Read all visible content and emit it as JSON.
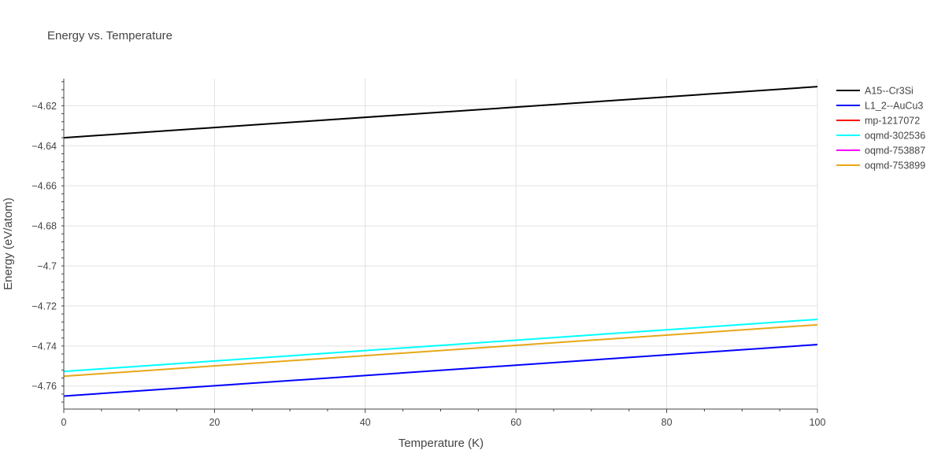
{
  "chart_data": {
    "type": "line",
    "title": "Energy vs. Temperature",
    "xlabel": "Temperature (K)",
    "ylabel": "Energy (eV/atom)",
    "xlim": [
      0,
      100
    ],
    "ylim": [
      -4.7715,
      -4.6065
    ],
    "xticks": [
      0,
      20,
      40,
      60,
      80,
      100
    ],
    "xtick_labels": [
      "0",
      "20",
      "40",
      "60",
      "80",
      "100"
    ],
    "yticks": [
      -4.62,
      -4.64,
      -4.66,
      -4.68,
      -4.7,
      -4.72,
      -4.74,
      -4.76
    ],
    "ytick_labels": [
      "−4.62",
      "−4.64",
      "−4.66",
      "−4.68",
      "−4.7",
      "−4.72",
      "−4.74",
      "−4.76"
    ],
    "grid": true,
    "legend_position": "top-right",
    "series": [
      {
        "name": "A15--Cr3Si",
        "color": "#000000",
        "x": [
          0,
          100
        ],
        "y": [
          -4.636,
          -4.6105
        ]
      },
      {
        "name": "L1_2--AuCu3",
        "color": "#0000ff",
        "x": [
          0,
          100
        ],
        "y": [
          -4.765,
          -4.7393
        ]
      },
      {
        "name": "mp-1217072",
        "color": "#ff0000",
        "x": [],
        "y": []
      },
      {
        "name": "oqmd-302536",
        "color": "#00ffff",
        "x": [
          0,
          100
        ],
        "y": [
          -4.7527,
          -4.7267
        ]
      },
      {
        "name": "oqmd-753887",
        "color": "#ff00ff",
        "x": [],
        "y": []
      },
      {
        "name": "oqmd-753899",
        "color": "#e6a817",
        "x": [
          0,
          100
        ],
        "y": [
          -4.7551,
          -4.7294
        ]
      }
    ]
  }
}
